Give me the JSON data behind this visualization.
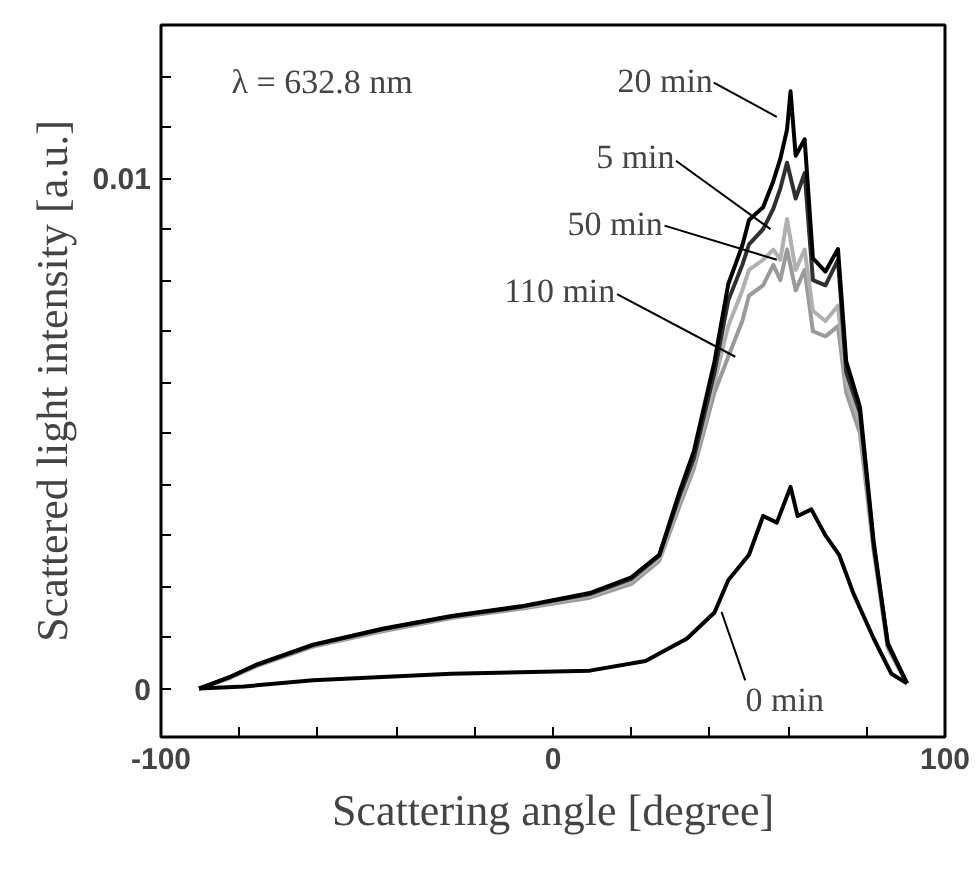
{
  "chart_data": {
    "type": "line",
    "xlabel": "Scattering angle [degree]",
    "ylabel": "Scattered light intensity [a.u.]",
    "xlim": [
      -100,
      100
    ],
    "ylim": [
      -0.00095,
      0.013
    ],
    "xticks": [
      -100,
      {
        "value": -80,
        "label": null
      },
      {
        "value": -60,
        "label": null
      },
      {
        "value": -40,
        "label": null
      },
      {
        "value": -20,
        "label": null
      },
      0,
      {
        "value": 20,
        "label": null
      },
      {
        "value": 40,
        "label": null
      },
      {
        "value": 60,
        "label": null
      },
      {
        "value": 80,
        "label": null
      },
      100
    ],
    "yticks": [
      0,
      {
        "value": 0.001,
        "label": null
      },
      {
        "value": 0.002,
        "label": null
      },
      {
        "value": 0.003,
        "label": null
      },
      {
        "value": 0.004,
        "label": null
      },
      {
        "value": 0.005,
        "label": null
      },
      {
        "value": 0.006,
        "label": null
      },
      {
        "value": 0.007,
        "label": null
      },
      {
        "value": 0.008,
        "label": null
      },
      {
        "value": 0.009,
        "label": null
      },
      0.01,
      {
        "value": 0.011,
        "label": null
      },
      {
        "value": 0.012,
        "label": null
      }
    ],
    "grid": false,
    "marker": "none",
    "line_style": "solid",
    "annotations": [
      "λ = 632.8 nm",
      {
        "text": "20 min",
        "x": 57.1,
        "y": 0.0112
      },
      {
        "text": "5 min",
        "x": 55.5,
        "y": 0.009
      },
      {
        "text": "50 min",
        "x": 57.1,
        "y": 0.0084
      },
      {
        "text": "110 min",
        "x": 46.5,
        "y": 0.0065
      },
      {
        "text": "0 min",
        "x": 43.0,
        "y": 0.0015
      }
    ],
    "series": [
      {
        "color": "#9a9a9a",
        "x": [
          -90.3,
          -82.3,
          -75.3,
          -61.2,
          -43.5,
          -25.9,
          -8.2,
          9.4,
          20.0,
          27.1,
          32.4,
          35.9,
          41.2,
          44.7,
          48.3,
          50.0,
          53.6,
          56.2,
          58.0,
          59.7,
          61.9,
          64.2,
          66.3,
          69.5,
          72.7,
          74.8,
          78.3,
          81.8,
          85.4,
          90.3
        ],
        "values": [
          0,
          0.00021,
          0.00045,
          0.00082,
          0.00112,
          0.00138,
          0.00156,
          0.00178,
          0.00205,
          0.0025,
          0.0036,
          0.0043,
          0.0058,
          0.0065,
          0.0072,
          0.0077,
          0.0079,
          0.0083,
          0.008,
          0.0086,
          0.0078,
          0.0082,
          0.007,
          0.0069,
          0.0071,
          0.0058,
          0.005,
          0.0027,
          0.0008,
          0.0001
        ]
      },
      {
        "color": "#b0b0b0",
        "x": [
          -90.3,
          -82.3,
          -75.3,
          -61.2,
          -43.5,
          -25.9,
          -8.2,
          9.4,
          20.0,
          27.1,
          32.4,
          35.9,
          41.2,
          44.7,
          48.3,
          50.0,
          53.6,
          56.2,
          58.0,
          59.7,
          61.9,
          64.2,
          66.3,
          69.5,
          72.7,
          74.8,
          78.3,
          81.8,
          85.4,
          90.3
        ],
        "values": [
          0,
          0.00022,
          0.00046,
          0.00084,
          0.00114,
          0.0014,
          0.00158,
          0.00182,
          0.0021,
          0.00255,
          0.0037,
          0.0044,
          0.006,
          0.0071,
          0.0078,
          0.0082,
          0.0084,
          0.0086,
          0.0084,
          0.0092,
          0.0082,
          0.0086,
          0.0074,
          0.0072,
          0.0075,
          0.006,
          0.0052,
          0.0028,
          0.0008,
          0.0001
        ]
      },
      {
        "color": "#303030",
        "x": [
          -90.3,
          -82.3,
          -75.3,
          -61.2,
          -43.5,
          -25.9,
          -8.2,
          9.4,
          20.0,
          27.1,
          32.4,
          35.9,
          41.2,
          44.7,
          48.3,
          50.0,
          53.6,
          56.2,
          58.0,
          59.7,
          61.9,
          64.2,
          66.3,
          69.5,
          72.7,
          74.8,
          78.3,
          81.8,
          85.4,
          90.3
        ],
        "values": [
          0,
          0.00023,
          0.00047,
          0.00085,
          0.00116,
          0.00141,
          0.0016,
          0.00185,
          0.00215,
          0.0026,
          0.0038,
          0.0045,
          0.0062,
          0.0076,
          0.0083,
          0.0087,
          0.009,
          0.0094,
          0.0098,
          0.0103,
          0.0096,
          0.0101,
          0.008,
          0.0079,
          0.0084,
          0.0062,
          0.0054,
          0.0028,
          0.0009,
          0.0001
        ]
      },
      {
        "color": "#000000",
        "x": [
          -90.3,
          -82.3,
          -75.3,
          -61.2,
          -43.5,
          -25.9,
          -8.2,
          9.4,
          20.0,
          27.1,
          32.4,
          35.9,
          41.2,
          44.7,
          48.3,
          50.0,
          53.6,
          56.2,
          58.0,
          59.7,
          60.6,
          61.9,
          64.2,
          66.3,
          69.5,
          72.7,
          74.8,
          78.3,
          81.8,
          85.4,
          90.3
        ],
        "values": [
          0,
          0.00023,
          0.00048,
          0.00086,
          0.00117,
          0.00142,
          0.00161,
          0.00187,
          0.00218,
          0.00262,
          0.00388,
          0.00464,
          0.00641,
          0.00792,
          0.00868,
          0.00918,
          0.00943,
          0.00994,
          0.01038,
          0.01095,
          0.0117,
          0.01044,
          0.01076,
          0.00843,
          0.00817,
          0.00861,
          0.00641,
          0.00552,
          0.00288,
          0.00086,
          0.0001
        ]
      },
      {
        "color": "#000000",
        "x": [
          -90.3,
          -78.8,
          -61.2,
          -25.9,
          9.4,
          23.6,
          34.2,
          41.2,
          44.7,
          50.0,
          53.6,
          57.1,
          60.6,
          62.4,
          65.9,
          69.5,
          73.0,
          76.6,
          81.8,
          86.3,
          90.3
        ],
        "values": [
          0,
          4e-05,
          0.00016,
          0.00029,
          0.00035,
          0.00054,
          0.00098,
          0.00149,
          0.00212,
          0.00262,
          0.00338,
          0.00325,
          0.00395,
          0.00338,
          0.00351,
          0.003,
          0.00262,
          0.00187,
          0.00098,
          0.00029,
          0.0001
        ]
      }
    ]
  }
}
